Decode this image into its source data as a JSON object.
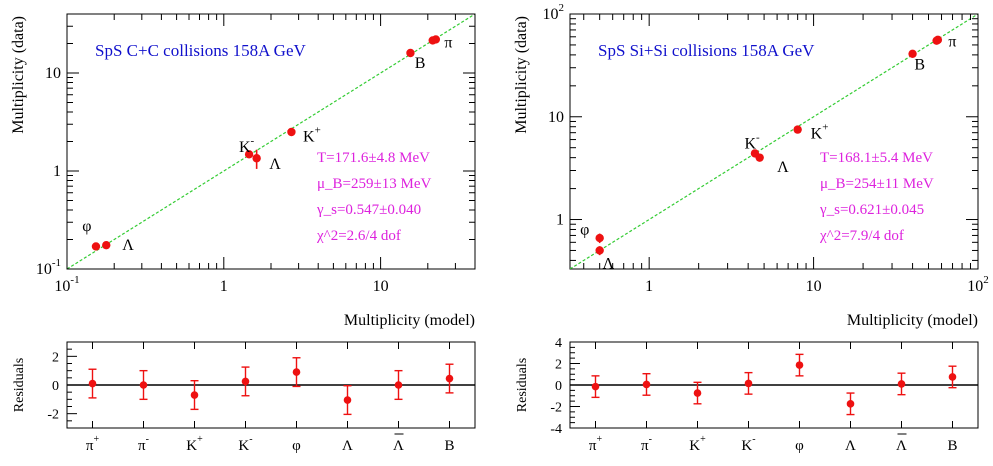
{
  "colors": {
    "marker": "#ee1111",
    "diagonal": "#33cc33",
    "title": "#1111cc",
    "params": "#dd22dd",
    "axis": "#000000"
  },
  "chart_data": [
    {
      "type": "scatter",
      "title": "SpS C+C collisions 158A GeV",
      "xlabel": "Multiplicity (model)",
      "ylabel": "Multiplicity (data)",
      "xscale": "log",
      "yscale": "log",
      "xlim": [
        0.1,
        40
      ],
      "ylim": [
        0.1,
        40
      ],
      "x_ticks": [
        {
          "v": 0.1,
          "base": "10",
          "exp": "-1"
        },
        {
          "v": 1,
          "base": "1",
          "exp": ""
        },
        {
          "v": 10,
          "base": "10",
          "exp": ""
        }
      ],
      "y_ticks": [
        {
          "v": 0.1,
          "base": "10",
          "exp": "-1"
        },
        {
          "v": 1,
          "base": "1",
          "exp": ""
        },
        {
          "v": 10,
          "base": "10",
          "exp": ""
        }
      ],
      "diagonal": true,
      "points": [
        {
          "name": "π+",
          "x": 22.5,
          "y": 22.0,
          "err": 0.9
        },
        {
          "name": "π-",
          "x": 21.5,
          "y": 21.5,
          "err": 0.9
        },
        {
          "name": "B",
          "x": 15.5,
          "y": 16.0,
          "err": 0.8
        },
        {
          "name": "K+",
          "x": 2.7,
          "y": 2.5,
          "err": 0.1
        },
        {
          "name": "K-",
          "x": 1.45,
          "y": 1.48,
          "err": 0.12
        },
        {
          "name": "Λ",
          "x": 1.62,
          "y": 1.35,
          "err": 0.3
        },
        {
          "name": "φ",
          "x": 0.153,
          "y": 0.17,
          "err": 0.01
        },
        {
          "name": "Λbar",
          "x": 0.178,
          "y": 0.175,
          "err": 0.01
        }
      ],
      "labels": [
        {
          "t": "π",
          "sup": "",
          "x": 25.5,
          "y": 21.0
        },
        {
          "t": "B",
          "sup": "",
          "x": 16.5,
          "y": 13.0
        },
        {
          "t": "K",
          "sup": "+",
          "x": 3.2,
          "y": 2.3
        },
        {
          "t": "K",
          "sup": "-",
          "x": 1.25,
          "y": 1.8
        },
        {
          "t": "Λ",
          "sup": "",
          "x": 1.95,
          "y": 1.2
        },
        {
          "t": "φ",
          "sup": "",
          "x": 0.125,
          "y": 0.28
        },
        {
          "t": "Λ",
          "sup": "",
          "x": 0.225,
          "y": 0.18
        }
      ],
      "params": [
        "T=171.6±4.8 MeV",
        "μ_B=259±13 MeV",
        "γ_s=0.547±0.040",
        "χ^2=2.6/4 dof"
      ],
      "residuals": {
        "ylabel": "Residuals",
        "ylim": [
          -3,
          3
        ],
        "y_ticks": [
          2,
          0,
          -2
        ],
        "categories": [
          {
            "t": "π",
            "sup": "+",
            "bar": false
          },
          {
            "t": "π",
            "sup": "-",
            "bar": false
          },
          {
            "t": "K",
            "sup": "+",
            "bar": false
          },
          {
            "t": "K",
            "sup": "-",
            "bar": false
          },
          {
            "t": "φ",
            "sup": "",
            "bar": false
          },
          {
            "t": "Λ",
            "sup": "",
            "bar": false
          },
          {
            "t": "Λ",
            "sup": "",
            "bar": true
          },
          {
            "t": "B",
            "sup": "",
            "bar": false
          }
        ],
        "values": [
          0.1,
          0.0,
          -0.7,
          0.25,
          0.9,
          -1.05,
          0.0,
          0.45
        ],
        "errors": [
          1.0,
          1.0,
          1.0,
          1.0,
          1.0,
          1.0,
          1.0,
          1.0
        ]
      }
    },
    {
      "type": "scatter",
      "title": "SpS Si+Si collisions 158A GeV",
      "xlabel": "Multiplicity (model)",
      "ylabel": "Multiplicity (data)",
      "xscale": "log",
      "yscale": "log",
      "xlim": [
        0.33,
        100
      ],
      "ylim": [
        0.33,
        100
      ],
      "x_ticks": [
        {
          "v": 1,
          "base": "1",
          "exp": ""
        },
        {
          "v": 10,
          "base": "10",
          "exp": ""
        },
        {
          "v": 100,
          "base": "10",
          "exp": "2"
        }
      ],
      "y_ticks": [
        {
          "v": 1,
          "base": "1",
          "exp": ""
        },
        {
          "v": 10,
          "base": "10",
          "exp": ""
        },
        {
          "v": 100,
          "base": "10",
          "exp": "2"
        }
      ],
      "diagonal": true,
      "points": [
        {
          "name": "π+",
          "x": 57,
          "y": 56,
          "err": 2
        },
        {
          "name": "π-",
          "x": 56,
          "y": 55,
          "err": 2
        },
        {
          "name": "B",
          "x": 40,
          "y": 41,
          "err": 2
        },
        {
          "name": "K+",
          "x": 8.0,
          "y": 7.5,
          "err": 0.3
        },
        {
          "name": "K-",
          "x": 4.4,
          "y": 4.4,
          "err": 0.2
        },
        {
          "name": "Λ",
          "x": 4.7,
          "y": 4.0,
          "err": 0.2
        },
        {
          "name": "φ",
          "x": 0.5,
          "y": 0.66,
          "err": 0.07
        },
        {
          "name": "Λbar",
          "x": 0.5,
          "y": 0.5,
          "err": 0.05
        }
      ],
      "labels": [
        {
          "t": "π",
          "sup": "",
          "x": 66,
          "y": 55
        },
        {
          "t": "B",
          "sup": "",
          "x": 41,
          "y": 33
        },
        {
          "t": "K",
          "sup": "+",
          "x": 9.6,
          "y": 7.0
        },
        {
          "t": "K",
          "sup": "-",
          "x": 3.8,
          "y": 5.6
        },
        {
          "t": "Λ",
          "sup": "",
          "x": 6.0,
          "y": 3.3
        },
        {
          "t": "φ",
          "sup": "",
          "x": 0.38,
          "y": 0.82
        },
        {
          "t": "Λ",
          "sup": "",
          "x": 0.52,
          "y": 0.38
        }
      ],
      "params": [
        "T=168.1±5.4 MeV",
        "μ_B=254±11 MeV",
        "γ_s=0.621±0.045",
        "χ^2=7.9/4 dof"
      ],
      "residuals": {
        "ylabel": "Residuals",
        "ylim": [
          -4,
          4
        ],
        "y_ticks": [
          4,
          2,
          0,
          -2,
          -4
        ],
        "categories": [
          {
            "t": "π",
            "sup": "+",
            "bar": false
          },
          {
            "t": "π",
            "sup": "-",
            "bar": false
          },
          {
            "t": "K",
            "sup": "+",
            "bar": false
          },
          {
            "t": "K",
            "sup": "-",
            "bar": false
          },
          {
            "t": "φ",
            "sup": "",
            "bar": false
          },
          {
            "t": "Λ",
            "sup": "",
            "bar": false
          },
          {
            "t": "Λ",
            "sup": "",
            "bar": true
          },
          {
            "t": "B",
            "sup": "",
            "bar": false
          }
        ],
        "values": [
          -0.15,
          0.05,
          -0.75,
          0.15,
          1.85,
          -1.75,
          0.1,
          0.75
        ],
        "errors": [
          1.0,
          1.0,
          1.0,
          1.0,
          1.0,
          1.0,
          1.0,
          1.0
        ]
      }
    }
  ]
}
